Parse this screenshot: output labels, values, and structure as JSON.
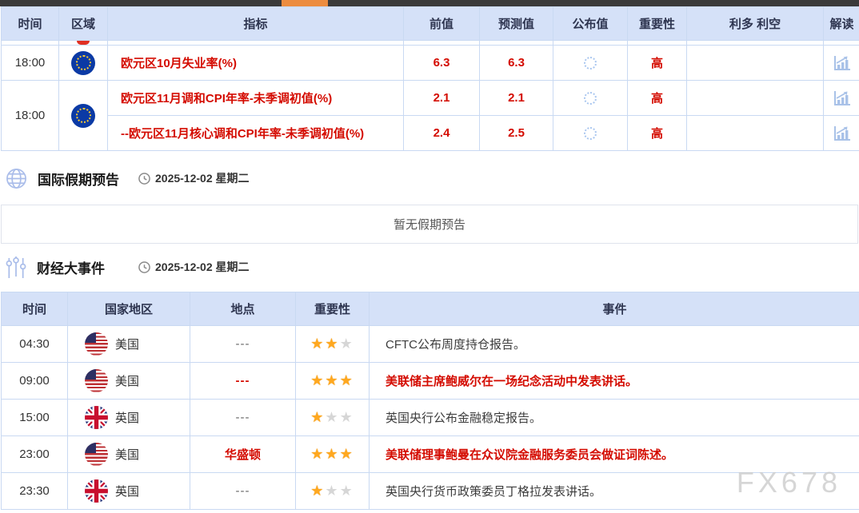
{
  "calendar_table": {
    "headers": {
      "time": "时间",
      "region": "区域",
      "indicator": "指标",
      "previous": "前值",
      "forecast": "预测值",
      "published": "公布值",
      "importance": "重要性",
      "bull_bear": "利多 利空",
      "interpret": "解读"
    },
    "rows": [
      {
        "time": "18:00",
        "region": "eu-flag",
        "indicator": "欧元区10月失业率(%)",
        "previous": "6.3",
        "forecast": "6.3",
        "published": "loading",
        "importance": "高"
      },
      {
        "time": "18:00",
        "region": "eu-flag",
        "indicator": "欧元区11月调和CPI年率-未季调初值(%)",
        "previous": "2.1",
        "forecast": "2.1",
        "published": "loading",
        "importance": "高"
      },
      {
        "time": "",
        "region": "",
        "indicator": "--欧元区11月核心调和CPI年率-未季调初值(%)",
        "previous": "2.4",
        "forecast": "2.5",
        "published": "loading",
        "importance": "高"
      }
    ]
  },
  "holiday_section": {
    "title": "国际假期预告",
    "date": "2025-12-02 星期二",
    "empty_message": "暂无假期预告"
  },
  "events_section": {
    "title": "财经大事件",
    "date": "2025-12-02 星期二"
  },
  "events_table": {
    "headers": {
      "time": "时间",
      "country": "国家地区",
      "location": "地点",
      "importance": "重要性",
      "event": "事件"
    },
    "rows": [
      {
        "time": "04:30",
        "country": "美国",
        "flag": "us-flag",
        "location": "---",
        "stars": 2,
        "event": "CFTC公布周度持仓报告。",
        "highlight": false
      },
      {
        "time": "09:00",
        "country": "美国",
        "flag": "us-flag",
        "location": "---",
        "stars": 3,
        "event": "美联储主席鲍威尔在一场纪念活动中发表讲话。",
        "highlight": true
      },
      {
        "time": "15:00",
        "country": "英国",
        "flag": "uk-flag",
        "location": "---",
        "stars": 1,
        "event": "英国央行公布金融稳定报告。",
        "highlight": false
      },
      {
        "time": "23:00",
        "country": "美国",
        "flag": "us-flag",
        "location": "华盛顿",
        "stars": 3,
        "event": "美联储理事鲍曼在众议院金融服务委员会做证词陈述。",
        "highlight": true
      },
      {
        "time": "23:30",
        "country": "英国",
        "flag": "uk-flag",
        "location": "---",
        "stars": 1,
        "event": "英国央行货币政策委员丁格拉发表讲话。",
        "highlight": false
      }
    ]
  },
  "watermark": "FX678",
  "colors": {
    "accent_red": "#d40b00",
    "header_bg": "#d5e1f8",
    "star_on": "#ffa81f",
    "star_off": "#d6d6d6",
    "scrollbar_thumb": "#ec8c3f",
    "eu_blue": "#0b3aa5"
  }
}
